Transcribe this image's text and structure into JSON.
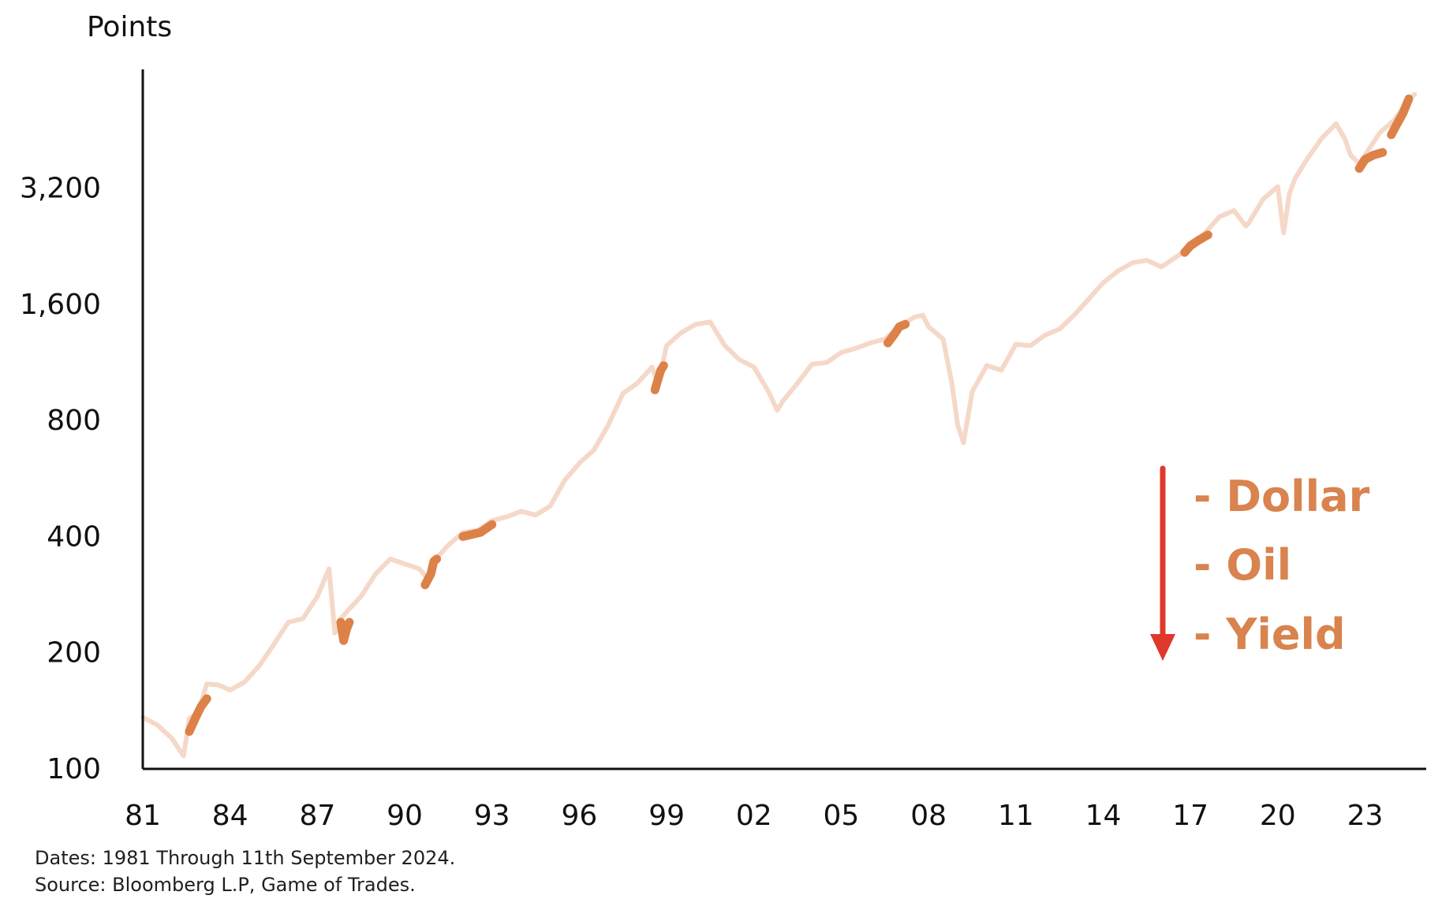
{
  "chart_data": {
    "type": "line",
    "title": "",
    "ylabel": "Points",
    "xlabel": "",
    "yscale": "log",
    "ylim": [
      100,
      6500
    ],
    "xlim": [
      1981,
      2025.1
    ],
    "yticks": [
      {
        "value": 100,
        "label": "100"
      },
      {
        "value": 200,
        "label": "200"
      },
      {
        "value": 400,
        "label": "400"
      },
      {
        "value": 800,
        "label": "800"
      },
      {
        "value": 1600,
        "label": "1,600"
      },
      {
        "value": 3200,
        "label": "3,200"
      }
    ],
    "xticks": [
      {
        "value": 1981,
        "label": "81"
      },
      {
        "value": 1984,
        "label": "84"
      },
      {
        "value": 1987,
        "label": "87"
      },
      {
        "value": 1990,
        "label": "90"
      },
      {
        "value": 1993,
        "label": "93"
      },
      {
        "value": 1996,
        "label": "96"
      },
      {
        "value": 1999,
        "label": "99"
      },
      {
        "value": 2002,
        "label": "02"
      },
      {
        "value": 2005,
        "label": "05"
      },
      {
        "value": 2008,
        "label": "08"
      },
      {
        "value": 2011,
        "label": "11"
      },
      {
        "value": 2014,
        "label": "14"
      },
      {
        "value": 2017,
        "label": "17"
      },
      {
        "value": 2020,
        "label": "20"
      },
      {
        "value": 2023,
        "label": "23"
      }
    ],
    "grid": false,
    "legend": "none",
    "series": [
      {
        "color": "#f5d8c8",
        "x": [
          1981.0,
          1981.5,
          1982.0,
          1982.4,
          1982.6,
          1982.9,
          1983.2,
          1983.6,
          1984.0,
          1984.5,
          1985.0,
          1985.5,
          1986.0,
          1986.5,
          1987.0,
          1987.4,
          1987.6,
          1987.8,
          1988.0,
          1988.5,
          1989.0,
          1989.5,
          1990.0,
          1990.5,
          1990.8,
          1991.0,
          1991.5,
          1992.0,
          1992.5,
          1993.0,
          1993.5,
          1994.0,
          1994.5,
          1995.0,
          1995.5,
          1996.0,
          1996.5,
          1997.0,
          1997.5,
          1998.0,
          1998.5,
          1998.7,
          1999.0,
          1999.5,
          2000.0,
          2000.5,
          2001.0,
          2001.5,
          2002.0,
          2002.5,
          2002.8,
          2003.0,
          2003.5,
          2004.0,
          2004.5,
          2005.0,
          2005.5,
          2006.0,
          2006.5,
          2007.0,
          2007.5,
          2007.8,
          2008.0,
          2008.5,
          2008.8,
          2009.0,
          2009.2,
          2009.5,
          2010.0,
          2010.5,
          2011.0,
          2011.5,
          2012.0,
          2012.5,
          2013.0,
          2013.5,
          2014.0,
          2014.5,
          2015.0,
          2015.5,
          2016.0,
          2016.5,
          2017.0,
          2017.5,
          2018.0,
          2018.5,
          2018.9,
          2019.0,
          2019.5,
          2020.0,
          2020.2,
          2020.4,
          2020.6,
          2021.0,
          2021.5,
          2022.0,
          2022.3,
          2022.5,
          2022.8,
          2023.0,
          2023.5,
          2024.0,
          2024.5,
          2024.7
        ],
        "y": [
          136,
          130,
          120,
          108,
          135,
          140,
          166,
          165,
          160,
          168,
          185,
          210,
          240,
          245,
          280,
          330,
          225,
          245,
          255,
          280,
          320,
          350,
          340,
          330,
          310,
          345,
          380,
          410,
          415,
          440,
          450,
          465,
          455,
          480,
          560,
          620,
          670,
          780,
          940,
          1000,
          1100,
          1000,
          1250,
          1350,
          1420,
          1440,
          1250,
          1150,
          1100,
          950,
          850,
          900,
          1000,
          1120,
          1130,
          1200,
          1230,
          1270,
          1300,
          1400,
          1480,
          1500,
          1400,
          1300,
          1000,
          780,
          700,
          950,
          1110,
          1080,
          1260,
          1250,
          1330,
          1380,
          1500,
          1650,
          1820,
          1950,
          2050,
          2080,
          2000,
          2120,
          2250,
          2450,
          2700,
          2800,
          2550,
          2600,
          3000,
          3230,
          2450,
          3100,
          3400,
          3800,
          4300,
          4700,
          4300,
          3900,
          3700,
          3900,
          4450,
          4800,
          5450,
          5600
        ]
      }
    ],
    "highlights": [
      {
        "color": "#dc8148",
        "x": [
          1982.6,
          1982.8,
          1983.0,
          1983.2
        ],
        "y": [
          125,
          135,
          145,
          152
        ]
      },
      {
        "color": "#dc8148",
        "x": [
          1987.8,
          1987.9,
          1988.0,
          1988.1
        ],
        "y": [
          240,
          215,
          230,
          240
        ]
      },
      {
        "color": "#dc8148",
        "x": [
          1990.7,
          1990.8,
          1990.9,
          1991.0,
          1991.1
        ],
        "y": [
          300,
          310,
          320,
          345,
          350
        ]
      },
      {
        "color": "#dc8148",
        "x": [
          1992.0,
          1992.3,
          1992.6,
          1993.0
        ],
        "y": [
          400,
          405,
          410,
          430
        ]
      },
      {
        "color": "#dc8148",
        "x": [
          1998.6,
          1998.7,
          1998.8,
          1998.9
        ],
        "y": [
          960,
          1020,
          1080,
          1110
        ]
      },
      {
        "color": "#dc8148",
        "x": [
          2006.6,
          2006.8,
          2007.0,
          2007.2
        ],
        "y": [
          1270,
          1330,
          1400,
          1420
        ]
      },
      {
        "color": "#dc8148",
        "x": [
          2016.8,
          2017.0,
          2017.3,
          2017.6
        ],
        "y": [
          2180,
          2270,
          2350,
          2420
        ]
      },
      {
        "color": "#dc8148",
        "x": [
          2022.8,
          2023.0,
          2023.3,
          2023.6
        ],
        "y": [
          3600,
          3800,
          3900,
          3960
        ]
      },
      {
        "color": "#dc8148",
        "x": [
          2023.9,
          2024.1,
          2024.3,
          2024.5
        ],
        "y": [
          4400,
          4700,
          5000,
          5450
        ]
      }
    ],
    "annotation": {
      "items": [
        "- Dollar",
        "- Oil",
        "- Yield"
      ],
      "arrow_color": "#e0382d",
      "text_color": "#d9834e"
    },
    "notes": [
      "Dates: 1981 Through 11th September 2024.",
      "Source: Bloomberg L.P, Game of Trades."
    ]
  }
}
